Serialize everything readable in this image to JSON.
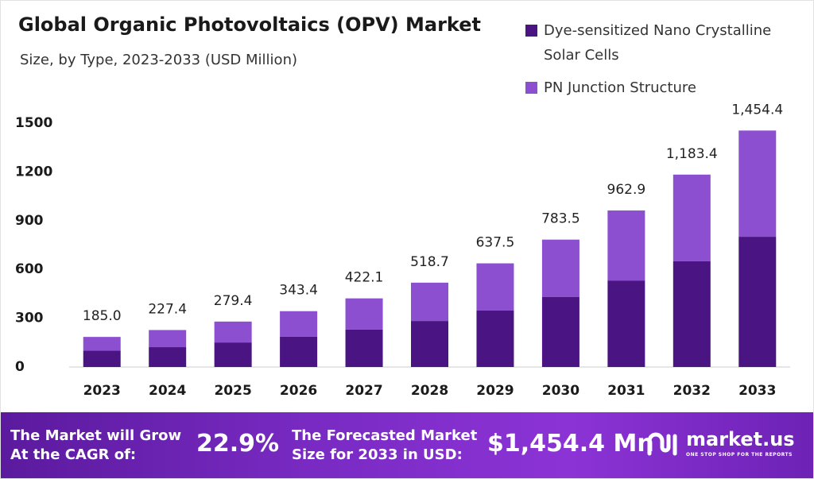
{
  "chart_data": {
    "type": "stacked_bar",
    "title": "Global Organic Photovoltaics (OPV) Market",
    "subtitle": "Size, by Type, 2023-2033 (USD Million)",
    "categories": [
      "2023",
      "2024",
      "2025",
      "2026",
      "2027",
      "2028",
      "2029",
      "2030",
      "2031",
      "2032",
      "2033"
    ],
    "series": [
      {
        "name": "Dye-sensitized Nano Crystalline Solar Cells",
        "color": "#4a1583",
        "values": [
          100,
          122,
          151,
          186,
          230,
          283,
          347,
          430,
          532,
          650,
          801
        ]
      },
      {
        "name": "PN Junction Structure",
        "color": "#8c4fd0",
        "values": [
          85,
          105.4,
          128.4,
          157.4,
          192.1,
          235.7,
          290.5,
          353.5,
          430.9,
          533.4,
          653.4
        ]
      }
    ],
    "total_labels": [
      "185.0",
      "227.4",
      "279.4",
      "343.4",
      "422.1",
      "518.7",
      "637.5",
      "783.5",
      "962.9",
      "1,183.4",
      "1,454.4"
    ],
    "ylim": [
      0,
      1500
    ],
    "yticks": [
      0,
      300,
      600,
      900,
      1200,
      1500
    ],
    "grid": false,
    "legend": "top-right"
  },
  "footer": {
    "cagr_label": [
      "The Market will Grow",
      "At the CAGR of:"
    ],
    "cagr_value": "22.9%",
    "forecast_label": [
      "The Forecasted Market",
      "Size for 2033 in USD:"
    ],
    "forecast_value": "$1,454.4 Mn",
    "brand": "market.us",
    "tagline": "ONE STOP SHOP FOR THE REPORTS"
  }
}
